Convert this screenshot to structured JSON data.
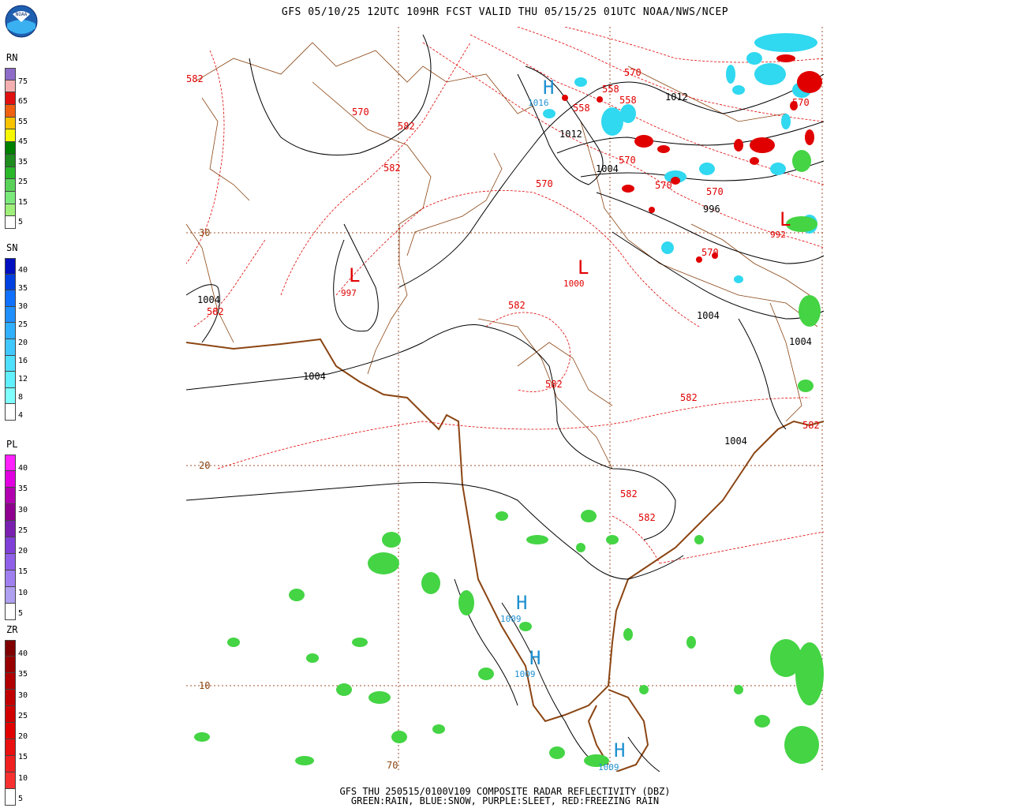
{
  "header": {
    "title": "GFS 05/10/25 12UTC 109HR FCST VALID THU 05/15/25 01UTC NOAA/NWS/NCEP",
    "logo_text": "NOAA"
  },
  "legends": [
    {
      "key": "rain",
      "label": "RN",
      "ticks": [
        "75",
        "65",
        "55",
        "45",
        "35",
        "25",
        "15",
        "5"
      ],
      "colors": [
        "#8e6cc8",
        "#f4b0b0",
        "#e11010",
        "#f06010",
        "#f8c400",
        "#f8f800",
        "#008000",
        "#1e8c1e",
        "#2ab82a",
        "#5ad25a",
        "#7be87b",
        "#9ff07a",
        "#ffffff"
      ]
    },
    {
      "key": "snow",
      "label": "SN",
      "ticks": [
        "40",
        "35",
        "30",
        "25",
        "20",
        "16",
        "12",
        "8",
        "4"
      ],
      "colors": [
        "#0010c0",
        "#0040e0",
        "#1070ff",
        "#2090ff",
        "#30b0ff",
        "#40c8ff",
        "#50e0ff",
        "#60f0ff",
        "#80ffff",
        "#ffffff"
      ]
    },
    {
      "key": "sleet",
      "label": "PL",
      "ticks": [
        "40",
        "35",
        "30",
        "25",
        "20",
        "15",
        "10",
        "5"
      ],
      "colors": [
        "#ff20ff",
        "#e000e0",
        "#b000b0",
        "#900090",
        "#7a20b0",
        "#8040d8",
        "#9060e8",
        "#a080f0",
        "#b0a0f0",
        "#ffffff"
      ]
    },
    {
      "key": "freezing_rain",
      "label": "ZR",
      "ticks": [
        "40",
        "35",
        "30",
        "25",
        "20",
        "15",
        "10",
        "5"
      ],
      "colors": [
        "#800000",
        "#980000",
        "#b00000",
        "#c00000",
        "#d00000",
        "#e00000",
        "#e81010",
        "#f02020",
        "#f83030",
        "#ffffff"
      ]
    }
  ],
  "map": {
    "lat_labels": [
      "30",
      "20",
      "10"
    ],
    "lon_labels": [
      "70"
    ],
    "height_labels_582": "582",
    "height_labels_570": "570",
    "height_labels_558": "558",
    "pressure_labels": {
      "p1012": "1012",
      "p1004": "1004",
      "p996": "996",
      "p992": "992",
      "p997": "997",
      "p1000": "1000",
      "p1009": "1009",
      "p1016": "1016"
    },
    "high_symbol": "H",
    "low_symbol": "L",
    "colors": {
      "height": "#e00000",
      "coast": "#8b4513",
      "isobar": "#000000",
      "high": "#1e90d0",
      "rain": "#33cc33",
      "snow": "#20d0f0",
      "zr": "#e00000"
    }
  },
  "footer": {
    "line1": "GFS THU 250515/0100V109 COMPOSITE RADAR REFLECTIVITY (DBZ)",
    "line2": "GREEN:RAIN, BLUE:SNOW, PURPLE:SLEET, RED:FREEZING RAIN"
  }
}
